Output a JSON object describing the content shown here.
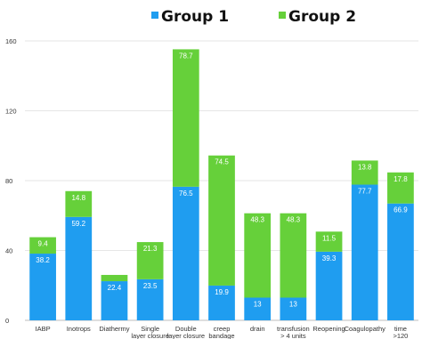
{
  "chart_data": {
    "type": "bar",
    "stacked": true,
    "categories": [
      [
        "IABP"
      ],
      [
        "Inotrops"
      ],
      [
        "Diathermy"
      ],
      [
        "Single",
        "layer closure"
      ],
      [
        "Double",
        "layer closure"
      ],
      [
        "creep",
        "bandage"
      ],
      [
        "drain"
      ],
      [
        "transfusion",
        "> 4 units"
      ],
      [
        "Reopening"
      ],
      [
        "Coagulopathy"
      ],
      [
        "time",
        ">120"
      ]
    ],
    "series": [
      {
        "name": "Group 1",
        "color": "#1f9df0",
        "values": [
          38.2,
          59.2,
          22.4,
          23.5,
          76.5,
          19.9,
          13,
          13,
          39.3,
          77.7,
          66.9
        ],
        "labels": [
          "38.2",
          "59.2",
          "22.4",
          "23.5",
          "76.5",
          "19.9",
          "13",
          "13",
          "39.3",
          "77.7",
          "66.9"
        ]
      },
      {
        "name": "Group 2",
        "color": "#66d03a",
        "values": [
          9.4,
          14.8,
          3.6,
          21.3,
          78.7,
          74.5,
          48.3,
          48.3,
          11.5,
          13.8,
          17.8
        ],
        "labels": [
          "9.4",
          "14.8",
          "",
          "21.3",
          "78.7",
          "74.5",
          "48.3",
          "48.3",
          "11.5",
          "13.8",
          "17.8"
        ]
      }
    ],
    "yticks": [
      0,
      40,
      80,
      120,
      160
    ],
    "ylim": [
      0,
      160
    ],
    "grid": true,
    "legend_position": "top"
  }
}
